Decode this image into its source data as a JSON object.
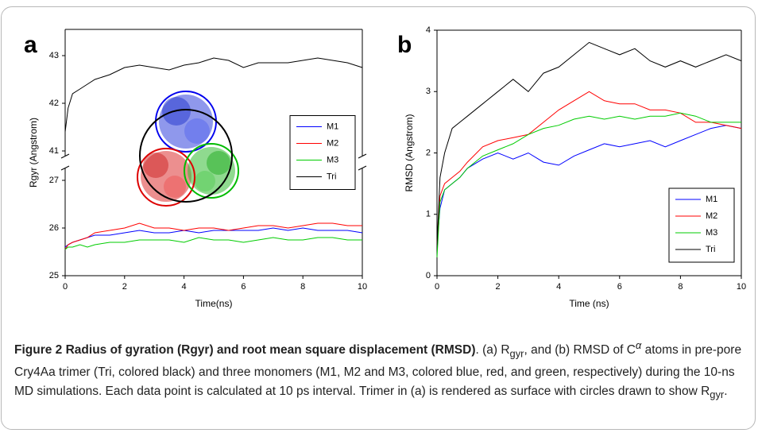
{
  "chart_data": [
    {
      "type": "line",
      "panel_label": "a",
      "x_label": "Time(ns)",
      "y_label": "Rgyr (Angstrom)",
      "x": [
        0,
        0.1,
        0.25,
        0.5,
        0.75,
        1,
        1.5,
        2,
        2.5,
        3,
        3.5,
        4,
        4.5,
        5,
        5.5,
        6,
        6.5,
        7,
        7.5,
        8,
        8.5,
        9,
        9.5,
        10
      ],
      "series": [
        {
          "name": "M1",
          "color": "#0000ff",
          "values": [
            25.6,
            25.65,
            25.7,
            25.75,
            25.8,
            25.85,
            25.85,
            25.9,
            25.95,
            25.9,
            25.9,
            25.95,
            25.9,
            25.95,
            25.95,
            25.95,
            25.95,
            26.0,
            25.95,
            26.0,
            25.95,
            25.95,
            25.95,
            25.9
          ]
        },
        {
          "name": "M2",
          "color": "#ff0000",
          "values": [
            25.55,
            25.65,
            25.7,
            25.75,
            25.8,
            25.9,
            25.95,
            26.0,
            26.1,
            26.0,
            26.0,
            25.95,
            26.0,
            26.0,
            25.95,
            26.0,
            26.05,
            26.05,
            26.0,
            26.05,
            26.1,
            26.1,
            26.05,
            26.05
          ]
        },
        {
          "name": "M3",
          "color": "#00cc00",
          "values": [
            25.55,
            25.6,
            25.6,
            25.65,
            25.6,
            25.65,
            25.7,
            25.7,
            25.75,
            25.75,
            25.75,
            25.7,
            25.8,
            25.75,
            25.75,
            25.7,
            25.75,
            25.8,
            25.75,
            25.75,
            25.8,
            25.8,
            25.75,
            25.75
          ]
        },
        {
          "name": "Tri",
          "color": "#000000",
          "values": [
            41.4,
            41.9,
            42.2,
            42.3,
            42.4,
            42.5,
            42.6,
            42.75,
            42.8,
            42.75,
            42.7,
            42.8,
            42.85,
            42.95,
            42.9,
            42.75,
            42.85,
            42.85,
            42.85,
            42.9,
            42.95,
            42.9,
            42.85,
            42.75
          ]
        }
      ],
      "xlim": [
        0,
        10
      ],
      "xticks": [
        0,
        2,
        4,
        6,
        8,
        10
      ],
      "ylim": [
        25,
        43.55
      ],
      "ybreak": [
        27.25,
        40.9
      ],
      "yticks": [
        25,
        26,
        27,
        41,
        42,
        43
      ],
      "legend": "right"
    },
    {
      "type": "line",
      "panel_label": "b",
      "x_label": "Time (ns)",
      "y_label": "RMSD (Angstrom)",
      "x": [
        0,
        0.1,
        0.25,
        0.5,
        0.75,
        1,
        1.5,
        2,
        2.5,
        3,
        3.5,
        4,
        4.5,
        5,
        5.5,
        6,
        6.5,
        7,
        7.5,
        8,
        8.5,
        9,
        9.5,
        10
      ],
      "series": [
        {
          "name": "M1",
          "color": "#0000ff",
          "values": [
            0.5,
            1.1,
            1.4,
            1.5,
            1.6,
            1.75,
            1.9,
            2.0,
            1.9,
            2.0,
            1.85,
            1.8,
            1.95,
            2.05,
            2.15,
            2.1,
            2.15,
            2.2,
            2.1,
            2.2,
            2.3,
            2.4,
            2.45,
            2.4
          ]
        },
        {
          "name": "M2",
          "color": "#ff0000",
          "values": [
            0.5,
            1.3,
            1.5,
            1.6,
            1.7,
            1.85,
            2.1,
            2.2,
            2.25,
            2.3,
            2.5,
            2.7,
            2.85,
            3.0,
            2.85,
            2.8,
            2.8,
            2.7,
            2.7,
            2.65,
            2.5,
            2.5,
            2.45,
            2.4
          ]
        },
        {
          "name": "M3",
          "color": "#00cc00",
          "values": [
            0.3,
            1.2,
            1.4,
            1.5,
            1.6,
            1.75,
            1.95,
            2.05,
            2.15,
            2.3,
            2.4,
            2.45,
            2.55,
            2.6,
            2.55,
            2.6,
            2.55,
            2.6,
            2.6,
            2.65,
            2.6,
            2.5,
            2.5,
            2.5
          ]
        },
        {
          "name": "Tri",
          "color": "#000000",
          "values": [
            0.5,
            1.6,
            2.0,
            2.4,
            2.5,
            2.6,
            2.8,
            3.0,
            3.2,
            3.0,
            3.3,
            3.4,
            3.6,
            3.8,
            3.7,
            3.6,
            3.7,
            3.5,
            3.4,
            3.5,
            3.4,
            3.5,
            3.6,
            3.5
          ]
        }
      ],
      "xlim": [
        0,
        10
      ],
      "xticks": [
        0,
        2,
        4,
        6,
        8,
        10
      ],
      "ylim": [
        0,
        4
      ],
      "yticks": [
        0,
        1,
        2,
        3,
        4
      ],
      "legend": "lower right"
    }
  ],
  "caption": {
    "label": "Figure 2",
    "title": "Radius of gyration (Rgyr) and root mean square displacement (RMSD)",
    "body": [
      ". (a) R",
      "gyr",
      ", and (b) RMSD of ",
      "C",
      "α",
      " atoms in pre-pore Cry4Aa trimer (Tri, colored black) and three monomers (M1, M2 and M3, colored blue, red, and green, respectively) during the 10-ns MD simulations. Each data point is calculated at 10 ps interval. Trimer in (a) is rendered as surface with circles drawn to show R",
      "gyr",
      "."
    ]
  }
}
